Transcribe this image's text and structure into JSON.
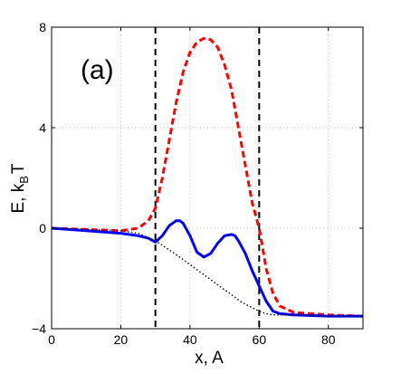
{
  "chart_data": {
    "type": "line",
    "panel_label": "(a)",
    "xlabel": "x, A",
    "ylabel_main": "E, k",
    "ylabel_sub": "B",
    "ylabel_tail": "T",
    "xlim": [
      0,
      90
    ],
    "ylim": [
      -4,
      8
    ],
    "xticks": [
      0,
      20,
      40,
      60,
      80
    ],
    "yticks": [
      -4,
      0,
      4,
      8
    ],
    "grid": "dotted",
    "vlines": [
      30,
      60
    ],
    "series": [
      {
        "style": "dashed",
        "color": "#ff0000",
        "x": [
          0,
          10,
          20,
          25,
          28,
          30,
          32,
          34,
          36,
          38,
          40,
          42,
          44,
          45,
          46,
          48,
          50,
          52,
          54,
          56,
          58,
          60,
          61,
          62,
          64,
          66,
          70,
          80,
          90
        ],
        "y": [
          0,
          -0.05,
          -0.1,
          0.0,
          0.3,
          0.8,
          2.0,
          3.5,
          5.0,
          6.2,
          7.0,
          7.4,
          7.55,
          7.55,
          7.5,
          7.2,
          6.5,
          5.5,
          4.0,
          2.5,
          1.0,
          0.0,
          -0.8,
          -1.6,
          -2.6,
          -3.1,
          -3.35,
          -3.45,
          -3.5
        ]
      },
      {
        "style": "solid",
        "color": "#0000ff",
        "x": [
          0,
          10,
          20,
          25,
          28,
          30,
          32,
          34,
          36,
          37,
          38,
          40,
          42,
          44,
          46,
          48,
          50,
          52,
          53,
          54,
          56,
          58,
          60,
          62,
          64,
          66,
          70,
          80,
          90
        ],
        "y": [
          0,
          -0.1,
          -0.2,
          -0.3,
          -0.4,
          -0.55,
          -0.3,
          0.1,
          0.3,
          0.3,
          0.2,
          -0.3,
          -0.95,
          -1.15,
          -1.0,
          -0.6,
          -0.3,
          -0.25,
          -0.3,
          -0.5,
          -1.0,
          -1.7,
          -2.3,
          -2.9,
          -3.3,
          -3.4,
          -3.45,
          -3.5,
          -3.5
        ]
      },
      {
        "style": "dotted",
        "color": "#000000",
        "x": [
          0,
          10,
          20,
          25,
          30,
          35,
          40,
          45,
          50,
          55,
          60,
          62,
          64,
          66,
          70,
          80,
          90
        ],
        "y": [
          0,
          -0.05,
          -0.1,
          -0.2,
          -0.5,
          -0.95,
          -1.45,
          -1.95,
          -2.45,
          -2.95,
          -3.3,
          -3.4,
          -3.45,
          -3.45,
          -3.45,
          -3.5,
          -3.5
        ]
      }
    ]
  }
}
